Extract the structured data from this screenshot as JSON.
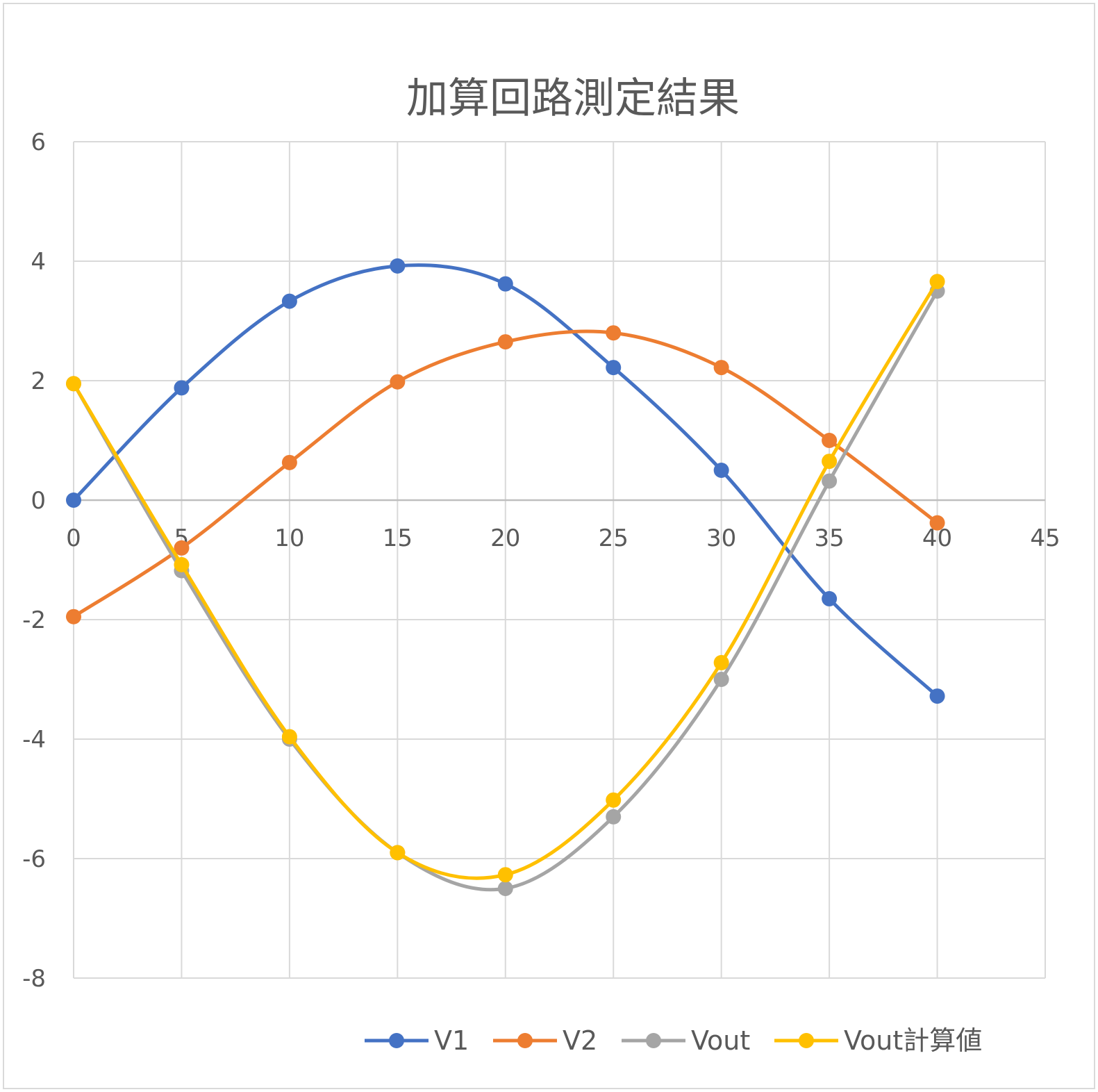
{
  "chart_data": {
    "type": "line",
    "title": "加算回路測定結果",
    "xlabel": "",
    "ylabel": "",
    "xlim": [
      0,
      45
    ],
    "ylim": [
      -8,
      6
    ],
    "x_ticks": [
      "0",
      "5",
      "10",
      "15",
      "20",
      "25",
      "30",
      "35",
      "40",
      "45"
    ],
    "y_ticks": [
      "6",
      "4",
      "2",
      "0",
      "-2",
      "-4",
      "-6",
      "-8"
    ],
    "grid": true,
    "smooth": true,
    "legend_position": "bottom",
    "x": [
      0,
      5,
      10,
      15,
      20,
      25,
      30,
      35,
      40
    ],
    "series": [
      {
        "name": "V1",
        "color": "#4472C4",
        "values": [
          0,
          1.88,
          3.33,
          3.92,
          3.62,
          2.22,
          0.5,
          -1.65,
          -3.28
        ]
      },
      {
        "name": "V2",
        "color": "#ED7D31",
        "values": [
          -1.95,
          -0.8,
          0.63,
          1.98,
          2.65,
          2.8,
          2.22,
          1.0,
          -0.38
        ]
      },
      {
        "name": "Vout",
        "color": "#A5A5A5",
        "values": [
          1.95,
          -1.18,
          -4.0,
          -5.9,
          -6.5,
          -5.3,
          -3.0,
          0.32,
          3.5
        ]
      },
      {
        "name": "Vout計算値",
        "color": "#FFC000",
        "values": [
          1.95,
          -1.08,
          -3.96,
          -5.9,
          -6.27,
          -5.02,
          -2.72,
          0.65,
          3.66
        ]
      }
    ]
  }
}
